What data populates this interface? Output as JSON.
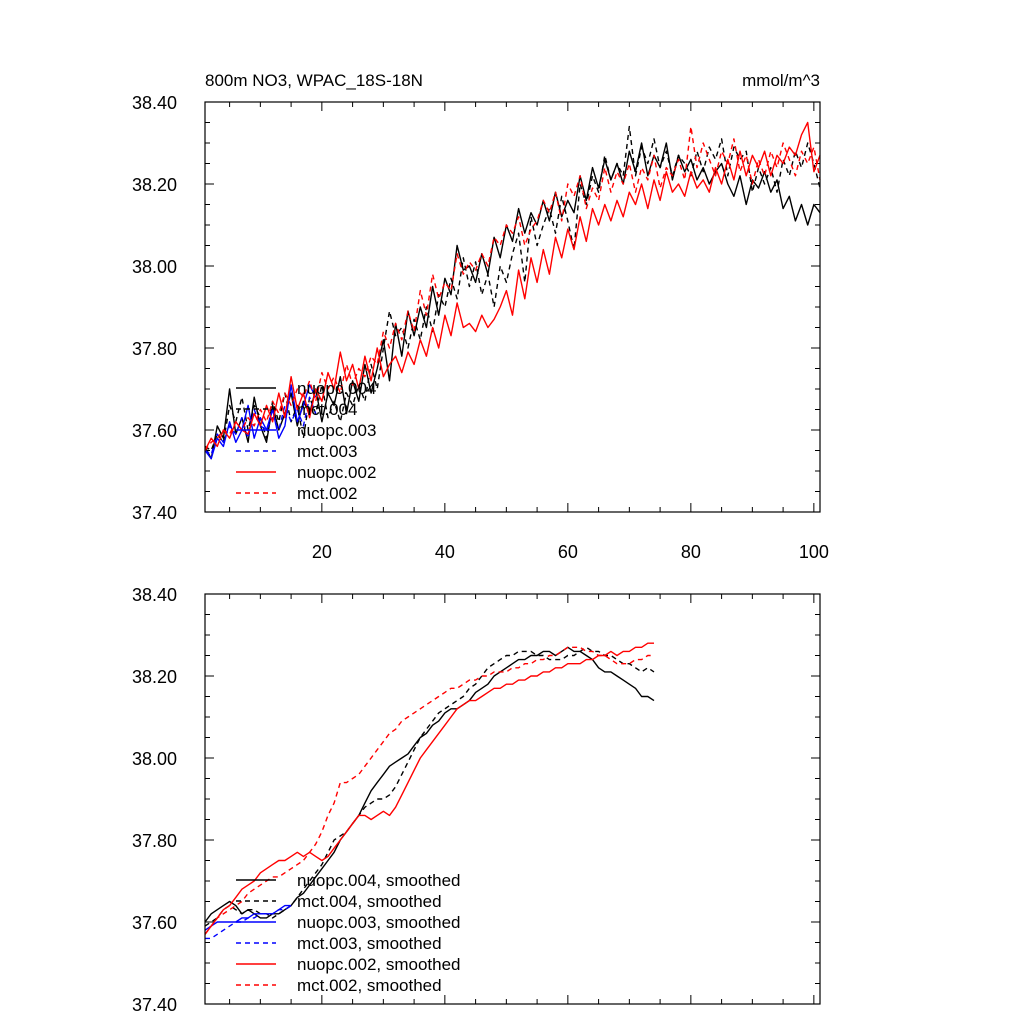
{
  "chart_data": [
    {
      "type": "line",
      "title": "800m NO3, WPAC_18S-18N",
      "units": "mmol/m^3",
      "xlim": [
        1,
        101
      ],
      "ylim": [
        37.4,
        38.4
      ],
      "xticks": [
        20,
        40,
        60,
        80,
        100
      ],
      "xtick_labels": [
        "20",
        "40",
        "60",
        "80",
        "100"
      ],
      "yticks": [
        37.4,
        37.6,
        37.8,
        38.0,
        38.2,
        38.4
      ],
      "ytick_labels": [
        "37.40",
        "37.60",
        "37.80",
        "38.00",
        "38.20",
        "38.40"
      ],
      "legend_position": "bottom-left",
      "series": [
        {
          "name": "nuopc.004",
          "color": "#000000",
          "dash": "solid",
          "x_start": 1,
          "values": [
            37.56,
            37.53,
            37.61,
            37.58,
            37.7,
            37.59,
            37.63,
            37.57,
            37.68,
            37.61,
            37.57,
            37.66,
            37.6,
            37.64,
            37.69,
            37.61,
            37.67,
            37.64,
            37.7,
            37.62,
            37.69,
            37.66,
            37.73,
            37.64,
            37.72,
            37.67,
            37.76,
            37.69,
            37.75,
            37.82,
            37.72,
            37.86,
            37.78,
            37.89,
            37.83,
            37.9,
            37.85,
            37.95,
            37.88,
            37.97,
            37.93,
            38.05,
            37.99,
            38.0,
            37.96,
            38.03,
            37.98,
            38.07,
            38.02,
            38.1,
            38.06,
            38.14,
            38.08,
            38.13,
            38.1,
            38.16,
            38.11,
            38.18,
            38.12,
            38.16,
            38.13,
            38.22,
            38.16,
            38.24,
            38.19,
            38.26,
            38.21,
            38.25,
            38.2,
            38.28,
            38.23,
            38.3,
            38.22,
            38.27,
            38.24,
            38.3,
            38.21,
            38.27,
            38.23,
            38.26,
            38.21,
            38.24,
            38.2,
            38.23,
            38.25,
            38.2,
            38.17,
            38.22,
            38.15,
            38.21,
            38.19,
            38.23,
            38.18,
            38.21,
            38.14,
            38.17,
            38.11,
            38.15,
            38.1,
            38.15,
            38.13
          ]
        },
        {
          "name": "mct.004",
          "color": "#000000",
          "dash": "dashed",
          "x_start": 1,
          "values": [
            37.56,
            37.55,
            37.59,
            37.57,
            37.66,
            37.62,
            37.68,
            37.6,
            37.66,
            37.63,
            37.58,
            37.67,
            37.62,
            37.69,
            37.62,
            37.66,
            37.58,
            37.68,
            37.64,
            37.71,
            37.63,
            37.67,
            37.62,
            37.69,
            37.66,
            37.71,
            37.67,
            37.76,
            37.7,
            37.8,
            37.89,
            37.83,
            37.85,
            37.8,
            37.87,
            37.82,
            37.9,
            37.84,
            37.93,
            37.9,
            37.97,
            37.92,
            38.02,
            37.95,
            38.01,
            37.93,
            37.98,
            37.9,
            38.0,
            37.96,
            38.03,
            38.08,
            37.96,
            38.12,
            38.05,
            38.1,
            38.14,
            38.08,
            38.17,
            38.11,
            38.04,
            38.2,
            38.15,
            38.22,
            38.18,
            38.27,
            38.21,
            38.25,
            38.22,
            38.34,
            38.22,
            38.29,
            38.25,
            38.31,
            38.24,
            38.28,
            38.22,
            38.27,
            38.25,
            38.22,
            38.28,
            38.23,
            38.29,
            38.26,
            38.31,
            38.22,
            38.29,
            38.26,
            38.28,
            38.18,
            38.24,
            38.2,
            38.24,
            38.18,
            38.26,
            38.22,
            38.28,
            38.24,
            38.3,
            38.25,
            38.19
          ]
        },
        {
          "name": "nuopc.003",
          "color": "#0000ff",
          "dash": "solid",
          "x_start": 1,
          "values": [
            37.55,
            37.53,
            37.58,
            37.56,
            37.62,
            37.57,
            37.6,
            37.66,
            37.58,
            37.63,
            37.6,
            37.65,
            37.58,
            37.61,
            37.71,
            37.62,
            37.66,
            37.71,
            37.68
          ]
        },
        {
          "name": "mct.003",
          "color": "#0000ff",
          "dash": "dashed",
          "x_start": 1,
          "values": [
            37.55,
            37.54,
            37.59,
            37.57,
            37.61,
            37.59,
            37.63,
            37.58,
            37.65,
            37.61,
            37.6,
            37.63,
            37.6,
            37.66,
            37.62,
            37.65,
            37.61,
            37.68,
            37.64
          ]
        },
        {
          "name": "nuopc.002",
          "color": "#ff0000",
          "dash": "solid",
          "x_start": 1,
          "values": [
            37.55,
            37.58,
            37.56,
            37.6,
            37.58,
            37.62,
            37.6,
            37.59,
            37.64,
            37.61,
            37.66,
            37.62,
            37.69,
            37.63,
            37.73,
            37.65,
            37.69,
            37.63,
            37.7,
            37.67,
            37.74,
            37.7,
            37.79,
            37.72,
            37.76,
            37.7,
            37.78,
            37.72,
            37.8,
            37.73,
            37.76,
            37.78,
            37.74,
            37.79,
            37.76,
            37.82,
            37.78,
            37.85,
            37.8,
            37.88,
            37.83,
            37.91,
            37.85,
            37.86,
            37.84,
            37.88,
            37.85,
            37.87,
            37.9,
            37.94,
            37.88,
            37.99,
            37.92,
            38.02,
            37.96,
            38.04,
            37.98,
            38.07,
            38.02,
            38.09,
            38.04,
            38.12,
            38.06,
            38.14,
            38.1,
            38.15,
            38.11,
            38.16,
            38.12,
            38.18,
            38.15,
            38.2,
            38.14,
            38.21,
            38.16,
            38.23,
            38.18,
            38.2,
            38.17,
            38.23,
            38.19,
            38.21,
            38.18,
            38.24,
            38.2,
            38.26,
            38.21,
            38.28,
            38.22,
            38.27,
            38.24,
            38.28,
            38.22,
            38.27,
            38.25,
            38.29,
            38.27,
            38.32,
            38.35,
            38.23,
            38.27
          ]
        },
        {
          "name": "mct.002",
          "color": "#ff0000",
          "dash": "dashed",
          "x_start": 1,
          "values": [
            37.55,
            37.57,
            37.58,
            37.6,
            37.59,
            37.62,
            37.6,
            37.63,
            37.61,
            37.65,
            37.62,
            37.67,
            37.64,
            37.69,
            37.66,
            37.7,
            37.68,
            37.72,
            37.67,
            37.74,
            37.7,
            37.73,
            37.69,
            37.76,
            37.71,
            37.75,
            37.73,
            37.78,
            37.76,
            37.84,
            37.8,
            37.86,
            37.82,
            37.89,
            37.84,
            37.94,
            37.88,
            37.98,
            37.92,
            37.96,
            37.94,
            38.03,
            37.98,
            38.01,
            37.99,
            38.03,
            38.0,
            38.07,
            38.05,
            38.1,
            38.08,
            38.12,
            38.05,
            38.09,
            38.11,
            38.16,
            38.13,
            38.18,
            38.11,
            38.2,
            38.17,
            38.22,
            38.14,
            38.19,
            38.16,
            38.24,
            38.18,
            38.23,
            38.2,
            38.25,
            38.18,
            38.24,
            38.21,
            38.27,
            38.19,
            38.24,
            38.22,
            38.26,
            38.21,
            38.34,
            38.24,
            38.3,
            38.26,
            38.22,
            38.28,
            38.25,
            38.31,
            38.23,
            38.27,
            38.2,
            38.26,
            38.22,
            38.28,
            38.24,
            38.3,
            38.26,
            38.22,
            38.28,
            38.25,
            38.29,
            38.21
          ]
        }
      ]
    },
    {
      "type": "line",
      "title": "",
      "units": "",
      "xlim": [
        1,
        101
      ],
      "ylim": [
        37.4,
        38.4
      ],
      "xticks": [
        20,
        40,
        60,
        80,
        100
      ],
      "xtick_labels": [],
      "yticks": [
        37.4,
        37.6,
        37.8,
        38.0,
        38.2,
        38.4
      ],
      "ytick_labels": [
        "37.40",
        "37.60",
        "37.80",
        "38.00",
        "38.20",
        "38.40"
      ],
      "legend_position": "bottom-left",
      "series": [
        {
          "name": "nuopc.004, smoothed",
          "color": "#000000",
          "dash": "solid",
          "x_start": 1,
          "values": [
            37.6,
            37.62,
            37.63,
            37.64,
            37.65,
            37.64,
            37.62,
            37.63,
            37.62,
            37.61,
            37.61,
            37.62,
            37.62,
            37.63,
            37.64,
            37.66,
            37.67,
            37.69,
            37.71,
            37.73,
            37.75,
            37.77,
            37.8,
            37.82,
            37.84,
            37.86,
            37.89,
            37.92,
            37.94,
            37.96,
            37.98,
            37.99,
            38.0,
            38.01,
            38.03,
            38.05,
            38.06,
            38.08,
            38.09,
            38.11,
            38.12,
            38.12,
            38.13,
            38.14,
            38.16,
            38.17,
            38.18,
            38.2,
            38.21,
            38.22,
            38.23,
            38.24,
            38.24,
            38.25,
            38.25,
            38.26,
            38.26,
            38.25,
            38.26,
            38.27,
            38.26,
            38.26,
            38.25,
            38.24,
            38.22,
            38.21,
            38.21,
            38.2,
            38.19,
            38.18,
            38.17,
            38.15,
            38.15,
            38.14
          ]
        },
        {
          "name": "mct.004, smoothed",
          "color": "#000000",
          "dash": "dashed",
          "x_start": 1,
          "values": [
            37.59,
            37.6,
            37.61,
            37.63,
            37.64,
            37.63,
            37.62,
            37.63,
            37.63,
            37.62,
            37.62,
            37.61,
            37.62,
            37.63,
            37.64,
            37.66,
            37.68,
            37.7,
            37.72,
            37.74,
            37.77,
            37.8,
            37.81,
            37.82,
            37.84,
            37.86,
            37.88,
            37.89,
            37.9,
            37.9,
            37.91,
            37.93,
            37.96,
            37.99,
            38.02,
            38.05,
            38.07,
            38.09,
            38.11,
            38.12,
            38.13,
            38.14,
            38.15,
            38.17,
            38.18,
            38.2,
            38.22,
            38.23,
            38.24,
            38.25,
            38.25,
            38.26,
            38.26,
            38.26,
            38.25,
            38.25,
            38.24,
            38.24,
            38.24,
            38.25,
            38.25,
            38.26,
            38.27,
            38.26,
            38.26,
            38.25,
            38.25,
            38.24,
            38.23,
            38.23,
            38.22,
            38.21,
            38.22,
            38.21
          ]
        },
        {
          "name": "nuopc.003, smoothed",
          "color": "#0000ff",
          "dash": "solid",
          "x_start": 1,
          "values": [
            37.58,
            37.59,
            37.6,
            37.6,
            37.6,
            37.6,
            37.61,
            37.61,
            37.62,
            37.62,
            37.62,
            37.62,
            37.63,
            37.64,
            37.64
          ]
        },
        {
          "name": "mct.003, smoothed",
          "color": "#0000ff",
          "dash": "dashed",
          "x_start": 1,
          "values": [
            37.56,
            37.56,
            37.57,
            37.58,
            37.59,
            37.6,
            37.6,
            37.61,
            37.61,
            37.62,
            37.62,
            37.62,
            37.63,
            37.63,
            37.64
          ]
        },
        {
          "name": "nuopc.002, smoothed",
          "color": "#ff0000",
          "dash": "solid",
          "x_start": 1,
          "values": [
            37.57,
            37.59,
            37.61,
            37.63,
            37.64,
            37.66,
            37.68,
            37.69,
            37.7,
            37.72,
            37.73,
            37.74,
            37.75,
            37.75,
            37.76,
            37.77,
            37.76,
            37.77,
            37.76,
            37.75,
            37.76,
            37.78,
            37.8,
            37.82,
            37.84,
            37.86,
            37.86,
            37.85,
            37.86,
            37.87,
            37.86,
            37.88,
            37.91,
            37.94,
            37.97,
            38.0,
            38.02,
            38.04,
            38.06,
            38.08,
            38.1,
            38.12,
            38.13,
            38.14,
            38.14,
            38.15,
            38.16,
            38.17,
            38.17,
            38.18,
            38.18,
            38.19,
            38.19,
            38.2,
            38.2,
            38.21,
            38.21,
            38.22,
            38.22,
            38.23,
            38.23,
            38.23,
            38.24,
            38.24,
            38.25,
            38.25,
            38.26,
            38.25,
            38.26,
            38.26,
            38.27,
            38.27,
            38.28,
            38.28
          ]
        },
        {
          "name": "mct.002, smoothed",
          "color": "#ff0000",
          "dash": "dashed",
          "x_start": 1,
          "values": [
            37.57,
            37.59,
            37.61,
            37.62,
            37.63,
            37.64,
            37.65,
            37.67,
            37.68,
            37.69,
            37.7,
            37.71,
            37.71,
            37.72,
            37.73,
            37.74,
            37.75,
            37.77,
            37.79,
            37.82,
            37.86,
            37.89,
            37.94,
            37.94,
            37.95,
            37.96,
            37.98,
            38.0,
            38.02,
            38.04,
            38.06,
            38.07,
            38.09,
            38.1,
            38.11,
            38.12,
            38.13,
            38.14,
            38.15,
            38.16,
            38.17,
            38.17,
            38.18,
            38.19,
            38.19,
            38.2,
            38.2,
            38.21,
            38.21,
            38.21,
            38.22,
            38.22,
            38.23,
            38.23,
            38.24,
            38.24,
            38.25,
            38.25,
            38.26,
            38.27,
            38.27,
            38.27,
            38.26,
            38.26,
            38.25,
            38.25,
            38.24,
            38.23,
            38.23,
            38.23,
            38.24,
            38.24,
            38.25,
            38.25
          ]
        }
      ]
    }
  ]
}
